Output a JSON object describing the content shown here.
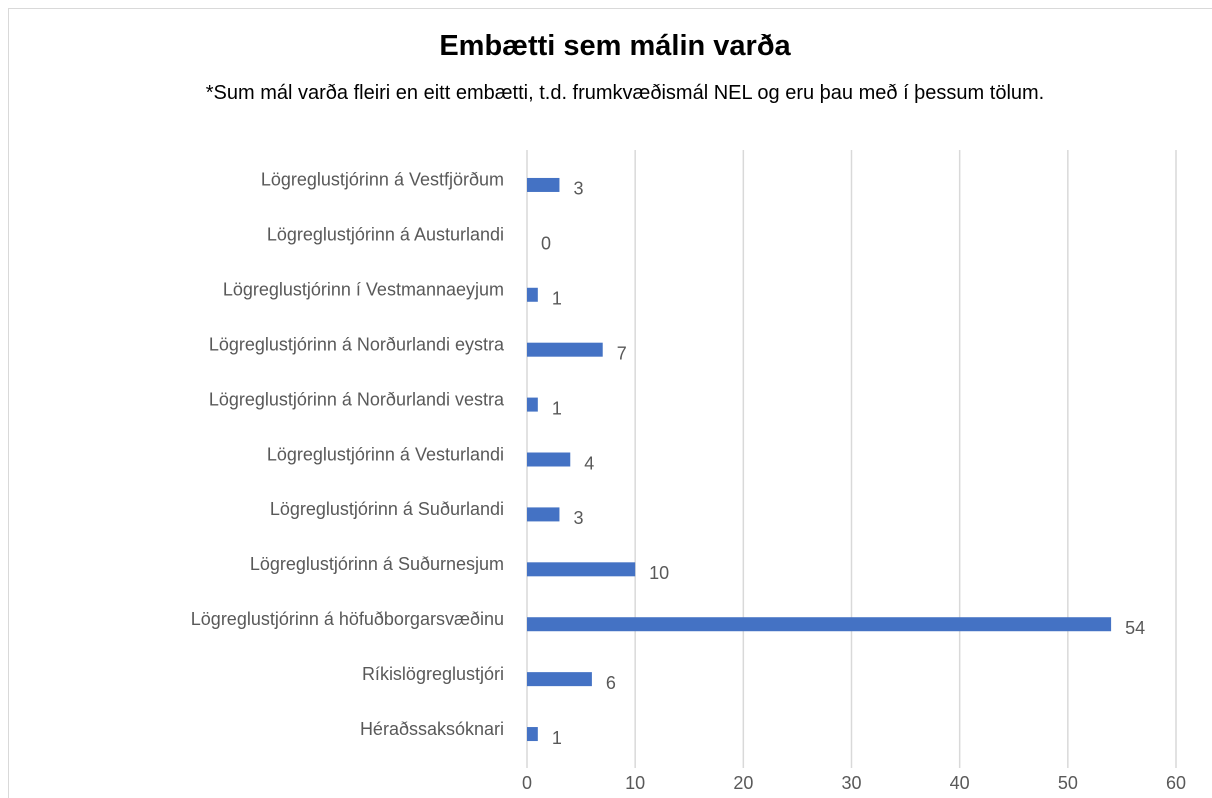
{
  "chart_data": {
    "type": "bar",
    "orientation": "horizontal",
    "title": "Embætti sem málin varða",
    "subtitle": "*Sum mál varða fleiri en eitt embætti, t.d. frumkvæðismál NEL og eru þau með í þessum tölum.",
    "categories": [
      "Lögreglustjórinn á Vestfjörðum",
      "Lögreglustjórinn á Austurlandi",
      "Lögreglustjórinn í Vestmannaeyjum",
      "Lögreglustjórinn á Norðurlandi eystra",
      "Lögreglustjórinn á Norðurlandi vestra",
      "Lögreglustjórinn á Vesturlandi",
      "Lögreglustjórinn á Suðurlandi",
      "Lögreglustjórinn á Suðurnesjum",
      "Lögreglustjórinn á höfuðborgarsvæðinu",
      "Ríkislögreglustjóri",
      "Héraðssaksóknari"
    ],
    "values": [
      3,
      0,
      1,
      7,
      1,
      4,
      3,
      10,
      54,
      6,
      1
    ],
    "color": "#4472c4",
    "xlim": [
      0,
      60
    ],
    "xticks": [
      0,
      10,
      20,
      30,
      40,
      50,
      60
    ],
    "grid": true
  }
}
